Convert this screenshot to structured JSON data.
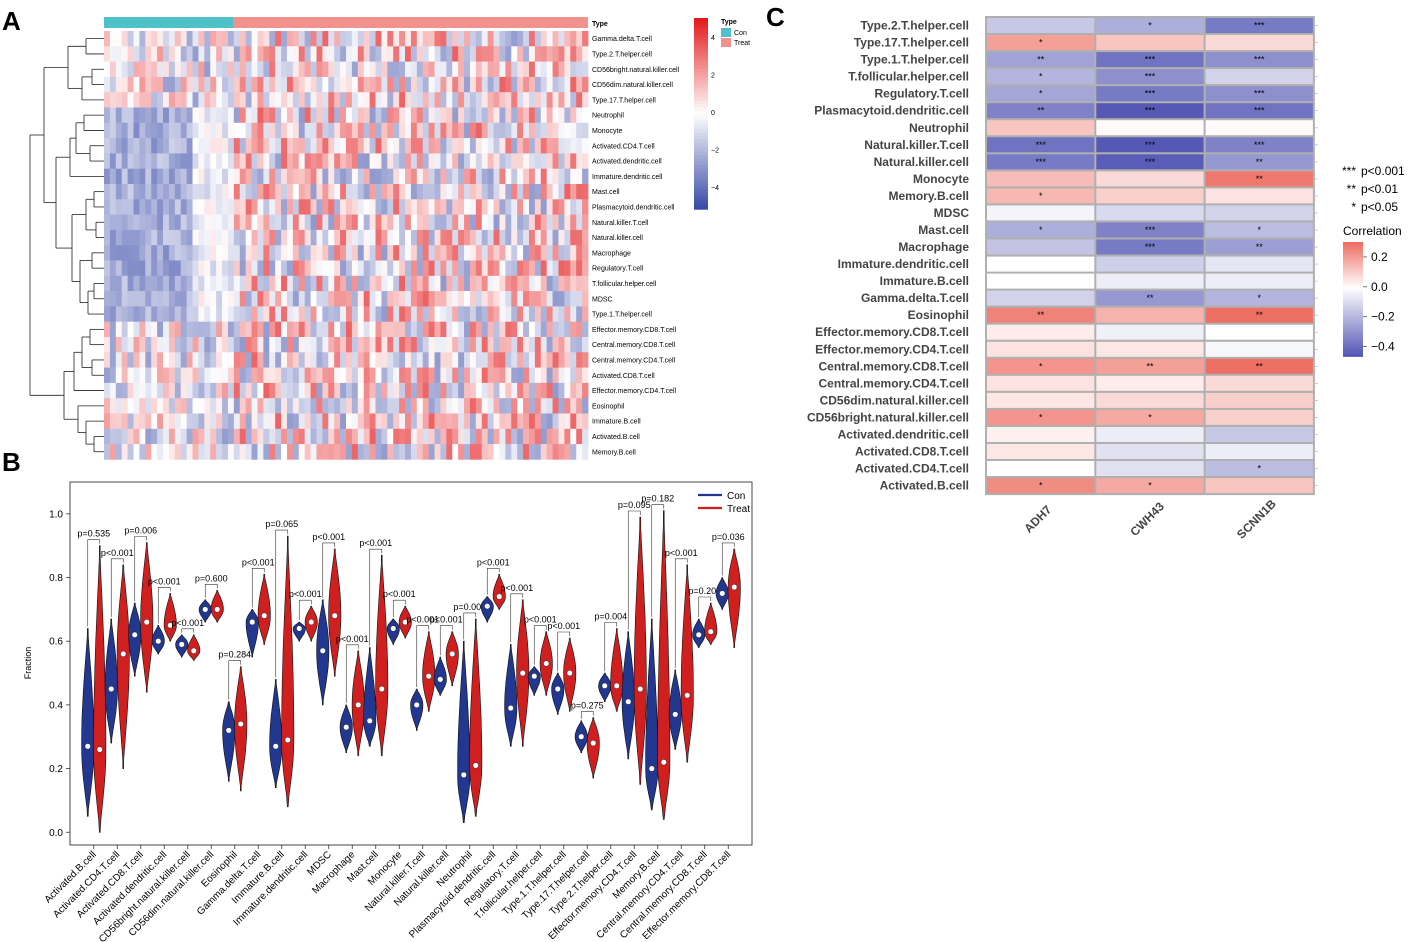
{
  "panels": {
    "a": "A",
    "b": "B",
    "c": "C"
  },
  "chart_data": [
    {
      "type": "heatmap",
      "panel": "A",
      "title": "",
      "annotation_label": "Type",
      "annotation_groups": [
        {
          "name": "Con",
          "color": "#4fc1c9"
        },
        {
          "name": "Treat",
          "color": "#f1938c"
        }
      ],
      "rows": [
        "Gamma.delta.T.cell",
        "Type.2.T.helper.cell",
        "CD56bright.natural.killer.cell",
        "CD56dim.natural.killer.cell",
        "Type.17.T.helper.cell",
        "Neutrophil",
        "Monocyte",
        "Activated.CD4.T.cell",
        "Activated.dendritic.cell",
        "Immature.dendritic.cell",
        "Mast.cell",
        "Plasmacytoid.dendritic.cell",
        "Natural.killer.T.cell",
        "Natural.killer.cell",
        "Macrophage",
        "Regulatory.T.cell",
        "T.follicular.helper.cell",
        "MDSC",
        "Type.1.T.helper.cell",
        "Effector.memory.CD8.T.cell",
        "Central.memory.CD8.T.cell",
        "Central.memory.CD4.T.cell",
        "Activated.CD8.T.cell",
        "Effector.memory.CD4.T.cell",
        "Eosinophil",
        "Immature.B.cell",
        "Activated.B.cell",
        "Memory.B.cell"
      ],
      "n_con": 22,
      "n_treat": 60,
      "color_scale": {
        "low": "#3b4ba8",
        "mid": "#ffffff",
        "high": "#e41a1c",
        "ticks": [
          "4",
          "2",
          "0",
          "−2",
          "−4"
        ]
      }
    },
    {
      "type": "violin",
      "panel": "B",
      "ylabel": "Fraction",
      "ylim": [
        0,
        1.1
      ],
      "yticks": [
        "0.0",
        "0.2",
        "0.4",
        "0.6",
        "0.8",
        "1.0"
      ],
      "legend": [
        {
          "name": "Con",
          "color": "#22378f"
        },
        {
          "name": "Treat",
          "color": "#cf1f1f"
        }
      ],
      "categories": [
        "Activated.B.cell",
        "Activated.CD4.T.cell",
        "Activated.CD8.T.cell",
        "Activated.dendritic.cell",
        "CD56bright.natural.killer.cell",
        "CD56dim.natural.killer.cell",
        "Eosinophil",
        "Gamma.delta.T.cell",
        "Immature.B.cell",
        "Immature.dendritic.cell",
        "MDSC",
        "Macrophage",
        "Mast.cell",
        "Monocyte",
        "Natural.killer.T.cell",
        "Natural.killer.cell",
        "Neutrophil",
        "Plasmacytoid.dendritic.cell",
        "Regulatory.T.cell",
        "T.follicular.helper.cell",
        "Type.1.T.helper.cell",
        "Type.17.T.helper.cell",
        "Type.2.T.helper.cell",
        "Effector.memory.CD4.T.cell",
        "Memory.B.cell",
        "Central.memory.CD4.T.cell",
        "Central.memory.CD8.T.cell",
        "Effector.memory.CD8.T.cell"
      ],
      "pvalues": [
        "p=0.535",
        "p<0.001",
        "p=0.006",
        "p<0.001",
        "p<0.001",
        "p=0.600",
        "p=0.284",
        "p<0.001",
        "p=0.065",
        "p<0.001",
        "p<0.001",
        "p<0.001",
        "p<0.001",
        "p<0.001",
        "p<0.001",
        "p<0.001",
        "p=0.003",
        "p<0.001",
        "p<0.001",
        "p<0.001",
        "p<0.001",
        "p=0.275",
        "p=0.004",
        "p=0.095",
        "p=0.182",
        "p<0.001",
        "p=0.206",
        "p=0.036"
      ],
      "series": [
        {
          "name": "Con",
          "min": [
            0.05,
            0.28,
            0.49,
            0.56,
            0.55,
            0.66,
            0.16,
            0.55,
            0.14,
            0.6,
            0.4,
            0.25,
            0.27,
            0.59,
            0.32,
            0.43,
            0.03,
            0.66,
            0.27,
            0.43,
            0.37,
            0.25,
            0.41,
            0.23,
            0.07,
            0.26,
            0.58,
            0.7
          ],
          "median": [
            0.27,
            0.45,
            0.62,
            0.6,
            0.59,
            0.7,
            0.32,
            0.66,
            0.27,
            0.64,
            0.57,
            0.33,
            0.35,
            0.64,
            0.4,
            0.48,
            0.18,
            0.71,
            0.39,
            0.49,
            0.45,
            0.3,
            0.46,
            0.41,
            0.2,
            0.37,
            0.62,
            0.75
          ],
          "max": [
            0.64,
            0.67,
            0.72,
            0.65,
            0.62,
            0.73,
            0.41,
            0.7,
            0.48,
            0.66,
            0.73,
            0.4,
            0.58,
            0.67,
            0.45,
            0.55,
            0.6,
            0.74,
            0.59,
            0.52,
            0.5,
            0.35,
            0.5,
            0.63,
            0.67,
            0.51,
            0.67,
            0.8
          ]
        },
        {
          "name": "Treat",
          "min": [
            0.0,
            0.2,
            0.44,
            0.6,
            0.54,
            0.66,
            0.13,
            0.59,
            0.08,
            0.6,
            0.49,
            0.24,
            0.24,
            0.61,
            0.38,
            0.46,
            0.05,
            0.7,
            0.27,
            0.43,
            0.38,
            0.17,
            0.38,
            0.15,
            0.04,
            0.22,
            0.59,
            0.58
          ],
          "median": [
            0.26,
            0.56,
            0.66,
            0.65,
            0.57,
            0.7,
            0.34,
            0.68,
            0.29,
            0.66,
            0.68,
            0.4,
            0.45,
            0.66,
            0.49,
            0.56,
            0.21,
            0.74,
            0.5,
            0.53,
            0.5,
            0.28,
            0.46,
            0.45,
            0.22,
            0.43,
            0.63,
            0.77
          ],
          "max": [
            0.9,
            0.84,
            0.91,
            0.75,
            0.62,
            0.76,
            0.52,
            0.81,
            0.93,
            0.71,
            0.89,
            0.57,
            0.87,
            0.71,
            0.63,
            0.63,
            0.67,
            0.81,
            0.73,
            0.63,
            0.61,
            0.36,
            0.64,
            0.99,
            1.01,
            0.84,
            0.72,
            0.89
          ]
        }
      ]
    },
    {
      "type": "heatmap",
      "panel": "C",
      "columns": [
        "ADH7",
        "CWH43",
        "SCNN1B"
      ],
      "rows": [
        "Type.2.T.helper.cell",
        "Type.17.T.helper.cell",
        "Type.1.T.helper.cell",
        "T.follicular.helper.cell",
        "Regulatory.T.cell",
        "Plasmacytoid.dendritic.cell",
        "Neutrophil",
        "Natural.killer.T.cell",
        "Natural.killer.cell",
        "Monocyte",
        "Memory.B.cell",
        "MDSC",
        "Mast.cell",
        "Macrophage",
        "Immature.dendritic.cell",
        "Immature.B.cell",
        "Gamma.delta.T.cell",
        "Eosinophil",
        "Effector.memory.CD8.T.cell",
        "Effector.memory.CD4.T.cell",
        "Central.memory.CD8.T.cell",
        "Central.memory.CD4.T.cell",
        "CD56dim.natural.killer.cell",
        "CD56bright.natural.killer.cell",
        "Activated.dendritic.cell",
        "Activated.CD8.T.cell",
        "Activated.CD4.T.cell",
        "Activated.B.cell"
      ],
      "values": [
        [
          -0.15,
          -0.22,
          -0.36
        ],
        [
          0.2,
          0.12,
          0.08
        ],
        [
          -0.25,
          -0.38,
          -0.3
        ],
        [
          -0.2,
          -0.3,
          -0.12
        ],
        [
          -0.24,
          -0.36,
          -0.3
        ],
        [
          -0.34,
          -0.45,
          -0.38
        ],
        [
          0.12,
          0.01,
          0.01
        ],
        [
          -0.38,
          -0.48,
          -0.34
        ],
        [
          -0.36,
          -0.44,
          -0.28
        ],
        [
          0.14,
          0.08,
          0.28
        ],
        [
          0.15,
          0.1,
          0.06
        ],
        [
          -0.03,
          -0.1,
          -0.12
        ],
        [
          -0.22,
          -0.34,
          -0.18
        ],
        [
          -0.16,
          -0.36,
          -0.26
        ],
        [
          0.0,
          -0.13,
          -0.07
        ],
        [
          0.0,
          -0.05,
          -0.05
        ],
        [
          -0.12,
          -0.28,
          -0.2
        ],
        [
          0.26,
          0.16,
          0.3
        ],
        [
          0.04,
          -0.04,
          0.0
        ],
        [
          0.06,
          0.05,
          -0.02
        ],
        [
          0.22,
          0.2,
          0.3
        ],
        [
          0.06,
          0.04,
          0.08
        ],
        [
          0.05,
          0.08,
          0.1
        ],
        [
          0.22,
          0.18,
          0.1
        ],
        [
          0.03,
          -0.05,
          -0.15
        ],
        [
          0.05,
          -0.08,
          -0.05
        ],
        [
          0.0,
          -0.08,
          -0.18
        ],
        [
          0.24,
          0.18,
          0.12
        ]
      ],
      "stars": [
        [
          "",
          "*",
          "***"
        ],
        [
          "*",
          "",
          ""
        ],
        [
          "**",
          "***",
          "***"
        ],
        [
          "*",
          "***",
          ""
        ],
        [
          "*",
          "***",
          "***"
        ],
        [
          "**",
          "***",
          "***"
        ],
        [
          "",
          "",
          ""
        ],
        [
          "***",
          "***",
          "***"
        ],
        [
          "***",
          "***",
          "**"
        ],
        [
          "",
          "",
          "**"
        ],
        [
          "*",
          "",
          ""
        ],
        [
          "",
          "",
          ""
        ],
        [
          "*",
          "***",
          "*"
        ],
        [
          "",
          "***",
          "**"
        ],
        [
          "",
          "",
          ""
        ],
        [
          "",
          "",
          ""
        ],
        [
          "",
          "**",
          "*"
        ],
        [
          "**",
          "",
          "**"
        ],
        [
          "",
          "",
          ""
        ],
        [
          "",
          "",
          ""
        ],
        [
          "*",
          "**",
          "**"
        ],
        [
          "",
          "",
          ""
        ],
        [
          "",
          "",
          ""
        ],
        [
          "*",
          "*",
          ""
        ],
        [
          "",
          "",
          ""
        ],
        [
          "",
          "",
          ""
        ],
        [
          "",
          "",
          "*"
        ],
        [
          "*",
          "*",
          ""
        ]
      ],
      "significance_legend": [
        {
          "mark": "***",
          "text": "p<0.001"
        },
        {
          "mark": "**",
          "text": "p<0.01"
        },
        {
          "mark": "*",
          "text": "p<0.05"
        }
      ],
      "colorbar": {
        "title": "Correlation",
        "ticks": [
          "0.2",
          "0.0",
          "−0.2",
          "−0.4"
        ],
        "range": [
          -0.45,
          0.3
        ]
      }
    }
  ]
}
